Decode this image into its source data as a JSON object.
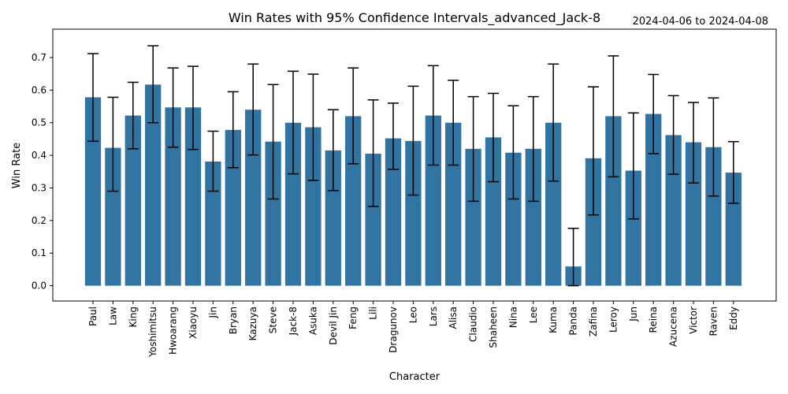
{
  "chart_data": {
    "type": "bar",
    "title": "Win Rates with 95% Confidence Intervals_advanced_Jack-8",
    "date_range": "2024-04-06 to 2024-04-08",
    "xlabel": "Character",
    "ylabel": "Win Rate",
    "ylim": [
      -0.047,
      0.787
    ],
    "yticks": [
      "0.0",
      "0.1",
      "0.2",
      "0.3",
      "0.4",
      "0.5",
      "0.6",
      "0.7"
    ],
    "grid": false,
    "bar_color": "#3274a1",
    "errorbar_color": "#000000",
    "categories": [
      "Paul",
      "Law",
      "King",
      "Yoshimitsu",
      "Hwoarang",
      "Xiaoyu",
      "Jin",
      "Bryan",
      "Kazuya",
      "Steve",
      "Jack-8",
      "Asuka",
      "Devil Jin",
      "Feng",
      "Lili",
      "Dragunov",
      "Leo",
      "Lars",
      "Alisa",
      "Claudio",
      "Shaheen",
      "Nina",
      "Lee",
      "Kuma",
      "Panda",
      "Zafina",
      "Leroy",
      "Jun",
      "Reina",
      "Azucena",
      "Victor",
      "Raven",
      "Eddy"
    ],
    "values": [
      0.578,
      0.423,
      0.522,
      0.617,
      0.547,
      0.547,
      0.381,
      0.478,
      0.54,
      0.442,
      0.5,
      0.486,
      0.415,
      0.52,
      0.405,
      0.452,
      0.444,
      0.522,
      0.5,
      0.42,
      0.455,
      0.408,
      0.42,
      0.5,
      0.059,
      0.391,
      0.52,
      0.353,
      0.527,
      0.462,
      0.44,
      0.425,
      0.347
    ],
    "ci_low": [
      0.443,
      0.29,
      0.42,
      0.5,
      0.425,
      0.418,
      0.29,
      0.362,
      0.401,
      0.266,
      0.343,
      0.323,
      0.292,
      0.374,
      0.243,
      0.357,
      0.278,
      0.37,
      0.37,
      0.259,
      0.319,
      0.266,
      0.259,
      0.321,
      0.0,
      0.217,
      0.334,
      0.205,
      0.405,
      0.342,
      0.315,
      0.275,
      0.253
    ],
    "ci_high": [
      0.712,
      0.578,
      0.624,
      0.736,
      0.668,
      0.673,
      0.474,
      0.595,
      0.68,
      0.617,
      0.658,
      0.649,
      0.54,
      0.668,
      0.57,
      0.56,
      0.612,
      0.675,
      0.63,
      0.58,
      0.59,
      0.552,
      0.58,
      0.68,
      0.176,
      0.61,
      0.705,
      0.53,
      0.648,
      0.583,
      0.562,
      0.576,
      0.442
    ]
  }
}
